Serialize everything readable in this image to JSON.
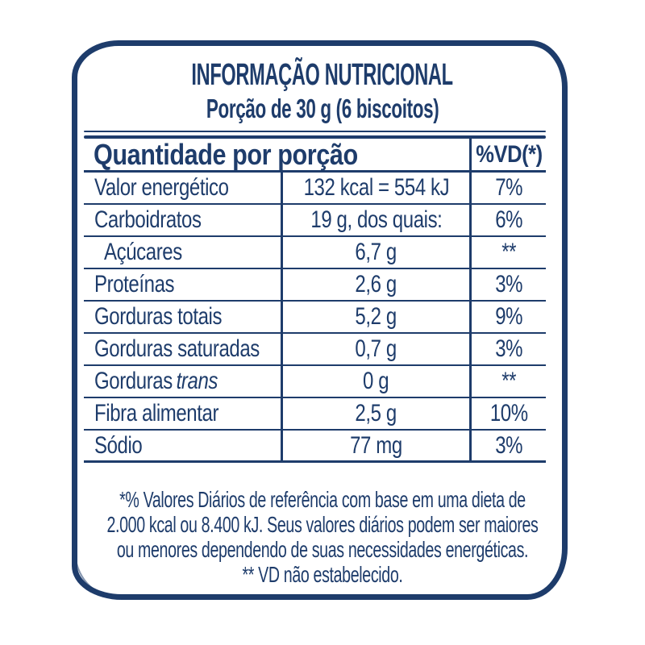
{
  "colors": {
    "ink": "#1e3c6b",
    "background": "#ffffff"
  },
  "header": {
    "title": "INFORMAÇÃO NUTRICIONAL",
    "subtitle": "Porção de 30 g (6 biscoitos)"
  },
  "table": {
    "header": {
      "quantity_label": "Quantidade por porção",
      "dv_label": "%VD(*)"
    },
    "rows": [
      {
        "label": "Valor energético",
        "value": "132 kcal = 554 kJ",
        "dv": "7%"
      },
      {
        "label": "Carboidratos",
        "value": "19 g, dos quais:",
        "dv": "6%"
      },
      {
        "label": "Açúcares",
        "value": "6,7 g",
        "dv": "**"
      },
      {
        "label": "Proteínas",
        "value": "2,6 g",
        "dv": "3%"
      },
      {
        "label": "Gorduras totais",
        "value": "5,2 g",
        "dv": "9%"
      },
      {
        "label": "Gorduras saturadas",
        "value": "0,7 g",
        "dv": "3%"
      },
      {
        "label": "Gorduras",
        "label_italic": "trans",
        "value": "0 g",
        "dv": "**"
      },
      {
        "label": "Fibra alimentar",
        "value": "2,5 g",
        "dv": "10%"
      },
      {
        "label": "Sódio",
        "value": "77 mg",
        "dv": "3%"
      }
    ]
  },
  "footnote": {
    "lines": [
      "*% Valores Diários de referência com base em uma dieta de",
      "2.000 kcal ou 8.400 kJ. Seus valores diários podem ser maiores",
      "ou menores dependendo de suas necessidades energéticas.",
      "** VD não estabelecido."
    ]
  }
}
